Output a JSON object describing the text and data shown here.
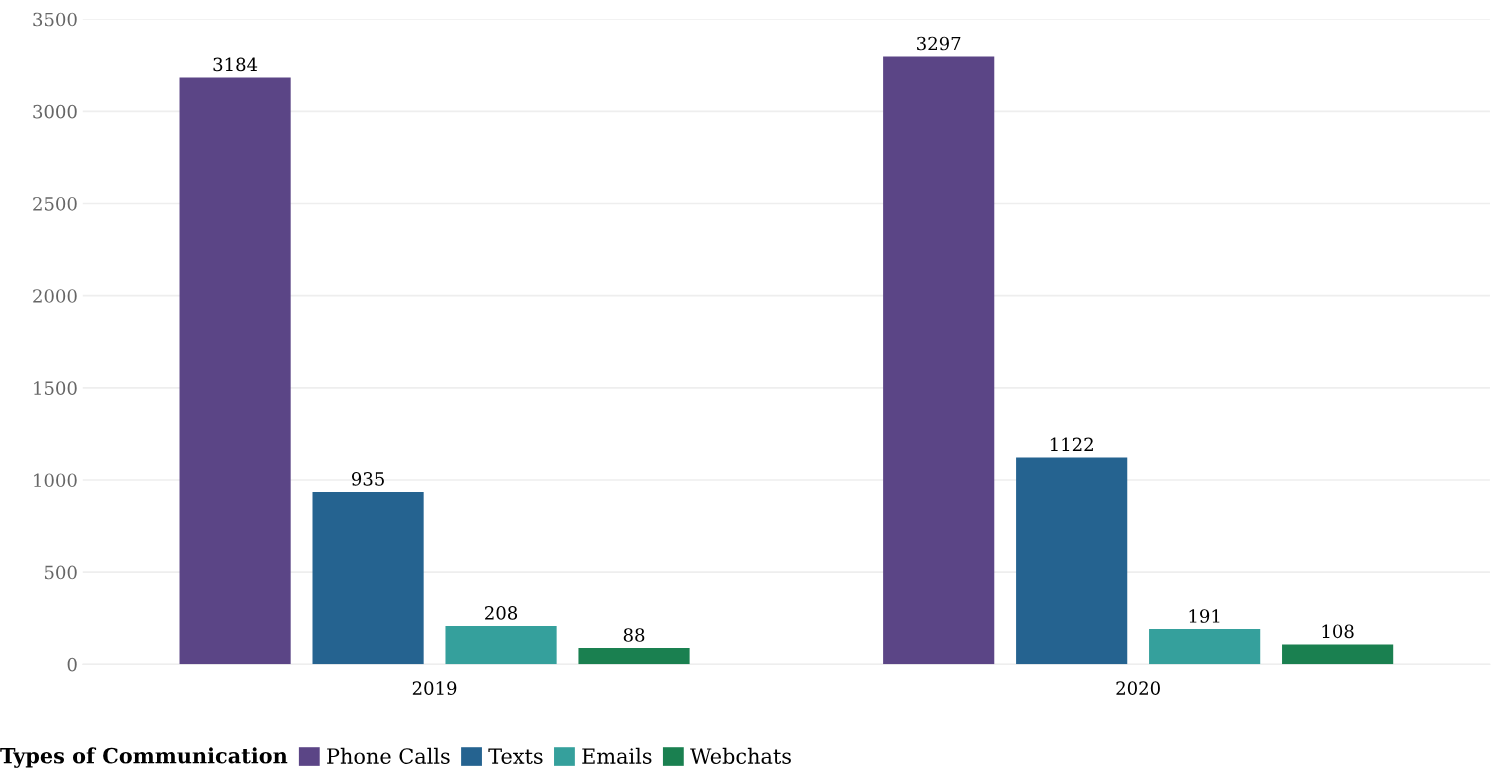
{
  "chart_data": {
    "type": "bar",
    "categories": [
      "2019",
      "2020"
    ],
    "series": [
      {
        "name": "Phone Calls",
        "color": "#5b4586",
        "values": [
          3184,
          3297
        ]
      },
      {
        "name": "Texts",
        "color": "#256390",
        "values": [
          935,
          1122
        ]
      },
      {
        "name": "Emails",
        "color": "#35a09c",
        "values": [
          208,
          191
        ]
      },
      {
        "name": "Webchats",
        "color": "#1a8050",
        "values": [
          88,
          108
        ]
      }
    ],
    "legend_title": "Types of Communication",
    "legend": "bottom left",
    "ylim": [
      0,
      3500
    ],
    "yticks": [
      0,
      500,
      1000,
      1500,
      2000,
      2500,
      3000,
      3500
    ],
    "grid": "y",
    "data_labels": true
  }
}
